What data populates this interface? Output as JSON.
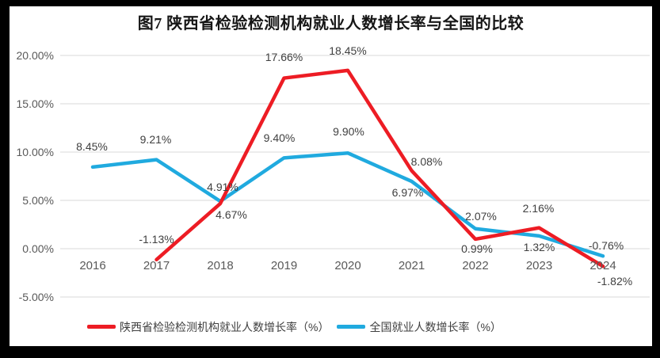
{
  "title": "图7 陕西省检验检测机构就业人数增长率与全国的比较",
  "chart_data": {
    "type": "line",
    "title": "图7 陕西省检验检测机构就业人数增长率与全国的比较",
    "categories": [
      "2016",
      "2017",
      "2018",
      "2019",
      "2020",
      "2021",
      "2022",
      "2023",
      "2024"
    ],
    "series": [
      {
        "name": "全国就业人数增长率（%）",
        "color": "#20AADF",
        "values": [
          8.45,
          9.21,
          4.91,
          9.4,
          9.9,
          6.97,
          2.07,
          1.32,
          -0.76
        ],
        "labels": [
          "8.45%",
          "9.21%",
          "4.91%",
          "9.40%",
          "9.90%",
          "6.97%",
          "2.07%",
          "1.32%",
          "-0.76%"
        ],
        "label_offsets": [
          [
            -1,
            -26
          ],
          [
            -1,
            -26
          ],
          [
            3,
            -18
          ],
          [
            -6,
            -25
          ],
          [
            1,
            -27
          ],
          [
            -5,
            14
          ],
          [
            7,
            -16
          ],
          [
            0,
            14
          ],
          [
            4,
            -13
          ]
        ]
      },
      {
        "name": "陕西省检验检测机构就业人数增长率（%）",
        "color": "#ED1C24",
        "values": [
          null,
          -1.13,
          4.67,
          17.66,
          18.45,
          8.08,
          0.99,
          2.16,
          -1.82
        ],
        "labels": [
          null,
          "-1.13%",
          "4.67%",
          "17.66%",
          "18.45%",
          "8.08%",
          "0.99%",
          "2.16%",
          "-1.82%"
        ],
        "label_offsets": [
          [
            0,
            0
          ],
          [
            0,
            -26
          ],
          [
            14,
            14
          ],
          [
            0,
            -27
          ],
          [
            0,
            -25
          ],
          [
            19,
            -11
          ],
          [
            2,
            12
          ],
          [
            -1,
            -25
          ],
          [
            15,
            19
          ]
        ]
      }
    ],
    "legend_order": [
      1,
      0
    ],
    "y_ticks": [
      {
        "label": "20.00%",
        "value": 20
      },
      {
        "label": "15.00%",
        "value": 15
      },
      {
        "label": "10.00%",
        "value": 10
      },
      {
        "label": "5.00%",
        "value": 5
      },
      {
        "label": "0.00%",
        "value": 0
      },
      {
        "label": "-5.00%",
        "value": -5
      }
    ],
    "ylim": [
      -5,
      20
    ],
    "grid": true,
    "grid_color": "#D9D9D9",
    "axis_text_color": "#595959",
    "label_text_color": "#404040",
    "legend_position": "bottom"
  }
}
